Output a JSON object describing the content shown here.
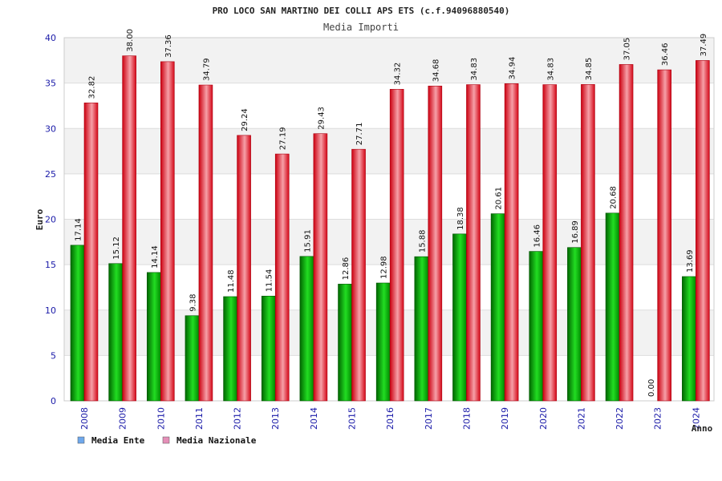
{
  "chart_data": {
    "type": "bar",
    "title": "PRO LOCO SAN MARTINO DEI COLLI APS ETS (c.f.94096880540)",
    "subtitle": "Media Importi",
    "xlabel": "Anno",
    "ylabel": "Euro",
    "ylim": [
      0,
      40
    ],
    "yticks": [
      "0",
      "5",
      "10",
      "15",
      "20",
      "25",
      "30",
      "35",
      "40"
    ],
    "grid": true,
    "legend_position": "bottom-left",
    "categories": [
      "2008",
      "2009",
      "2010",
      "2011",
      "2012",
      "2013",
      "2014",
      "2015",
      "2016",
      "2017",
      "2018",
      "2019",
      "2020",
      "2021",
      "2022",
      "2023",
      "2024"
    ],
    "series": [
      {
        "name": "Media Ente",
        "color": "#00aa00",
        "legend_color": "#6fa8ec",
        "values": [
          17.14,
          15.12,
          14.14,
          9.38,
          11.48,
          11.54,
          15.91,
          12.86,
          12.98,
          15.88,
          18.38,
          20.61,
          16.46,
          16.89,
          20.68,
          0.0,
          13.69
        ],
        "labels": [
          "17.14",
          "15.12",
          "14.14",
          "9.38",
          "11.48",
          "11.54",
          "15.91",
          "12.86",
          "12.98",
          "15.88",
          "18.38",
          "20.61",
          "16.46",
          "16.89",
          "20.68",
          "0.00",
          "13.69"
        ]
      },
      {
        "name": "Media Nazionale",
        "color": "#e8222e",
        "legend_color": "#e58fb8",
        "values": [
          32.82,
          38.0,
          37.36,
          34.79,
          29.24,
          27.19,
          29.43,
          27.71,
          34.32,
          34.68,
          34.83,
          34.94,
          34.83,
          34.85,
          37.05,
          36.46,
          37.49
        ],
        "labels": [
          "32.82",
          "38.00",
          "37.36",
          "34.79",
          "29.24",
          "27.19",
          "29.43",
          "27.71",
          "34.32",
          "34.68",
          "34.83",
          "34.94",
          "34.83",
          "34.85",
          "37.05",
          "36.46",
          "37.49"
        ]
      }
    ]
  }
}
